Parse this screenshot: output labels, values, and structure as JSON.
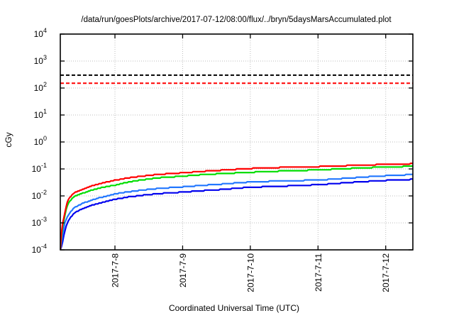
{
  "title": "/data/run/goesPlots/archive/2017-07-12/08:00/flux/../bryn/5daysMarsAccumulated.plot",
  "chart_data": {
    "type": "line",
    "title": "/data/run/goesPlots/archive/2017-07-12/08:00/flux/../bryn/5daysMarsAccumulated.plot",
    "xlabel": "Coordinated Universal Time (UTC)",
    "ylabel": "cGy",
    "y_scale": "log10",
    "ylim": [
      0.0001,
      10000
    ],
    "grid": true,
    "legend": false,
    "y_tick_exponents": [
      4,
      3,
      2,
      1,
      0,
      -1,
      -2,
      -3,
      -4
    ],
    "y_tick_base": "10",
    "x_ticks": [
      {
        "label": "2017-7-8",
        "u": 0.155
      },
      {
        "label": "2017-7-9",
        "u": 0.347
      },
      {
        "label": "2017-7-10",
        "u": 0.539
      },
      {
        "label": "2017-7-11",
        "u": 0.731
      },
      {
        "label": "2017-7-12",
        "u": 0.923
      }
    ],
    "reference_lines": [
      {
        "name": "upper-dose-limit",
        "value": 300,
        "color": "#000000",
        "style": "dashed"
      },
      {
        "name": "lower-dose-limit",
        "value": 150,
        "color": "#ff0000",
        "style": "dashed"
      }
    ],
    "series": [
      {
        "name": "blue-accumulated-dose",
        "color": "#0000ee",
        "points": [
          [
            0,
            0.0001
          ],
          [
            0.005,
            0.00015
          ],
          [
            0.009,
            0.0003
          ],
          [
            0.013,
            0.0005
          ],
          [
            0.017,
            0.0008
          ],
          [
            0.023,
            0.0012
          ],
          [
            0.03,
            0.0017
          ],
          [
            0.04,
            0.0023
          ],
          [
            0.052,
            0.0029
          ],
          [
            0.068,
            0.0036
          ],
          [
            0.09,
            0.0045
          ],
          [
            0.111,
            0.0054
          ],
          [
            0.133,
            0.0064
          ],
          [
            0.155,
            0.0075
          ],
          [
            0.19,
            0.009
          ],
          [
            0.23,
            0.0105
          ],
          [
            0.28,
            0.0122
          ],
          [
            0.347,
            0.0138
          ],
          [
            0.4,
            0.0156
          ],
          [
            0.46,
            0.0174
          ],
          [
            0.539,
            0.021
          ],
          [
            0.6,
            0.0222
          ],
          [
            0.66,
            0.0238
          ],
          [
            0.731,
            0.026
          ],
          [
            0.8,
            0.03
          ],
          [
            0.86,
            0.034
          ],
          [
            0.923,
            0.0375
          ],
          [
            1,
            0.041
          ]
        ]
      },
      {
        "name": "light-blue-accumulated-dose",
        "color": "#2277ff",
        "points": [
          [
            0,
            0.0001
          ],
          [
            0.004,
            0.0002
          ],
          [
            0.008,
            0.0005
          ],
          [
            0.012,
            0.0009
          ],
          [
            0.016,
            0.0013
          ],
          [
            0.022,
            0.0019
          ],
          [
            0.03,
            0.0027
          ],
          [
            0.04,
            0.0036
          ],
          [
            0.052,
            0.0045
          ],
          [
            0.068,
            0.0056
          ],
          [
            0.09,
            0.007
          ],
          [
            0.111,
            0.0085
          ],
          [
            0.133,
            0.01
          ],
          [
            0.155,
            0.0118
          ],
          [
            0.19,
            0.014
          ],
          [
            0.23,
            0.0163
          ],
          [
            0.28,
            0.019
          ],
          [
            0.347,
            0.0216
          ],
          [
            0.4,
            0.0245
          ],
          [
            0.46,
            0.0275
          ],
          [
            0.539,
            0.033
          ],
          [
            0.6,
            0.035
          ],
          [
            0.66,
            0.0368
          ],
          [
            0.731,
            0.0386
          ],
          [
            0.8,
            0.044
          ],
          [
            0.86,
            0.05
          ],
          [
            0.923,
            0.056
          ],
          [
            1,
            0.062
          ]
        ]
      },
      {
        "name": "green-accumulated-dose",
        "color": "#00dd00",
        "points": [
          [
            0,
            0.0001
          ],
          [
            0.003,
            0.0003
          ],
          [
            0.006,
            0.0007
          ],
          [
            0.01,
            0.0012
          ],
          [
            0.014,
            0.0022
          ],
          [
            0.018,
            0.0038
          ],
          [
            0.024,
            0.0058
          ],
          [
            0.034,
            0.0082
          ],
          [
            0.044,
            0.01
          ],
          [
            0.055,
            0.0115
          ],
          [
            0.068,
            0.0132
          ],
          [
            0.09,
            0.0165
          ],
          [
            0.111,
            0.0195
          ],
          [
            0.133,
            0.0222
          ],
          [
            0.155,
            0.025
          ],
          [
            0.19,
            0.032
          ],
          [
            0.23,
            0.039
          ],
          [
            0.28,
            0.047
          ],
          [
            0.347,
            0.054
          ],
          [
            0.4,
            0.061
          ],
          [
            0.46,
            0.067
          ],
          [
            0.539,
            0.075
          ],
          [
            0.6,
            0.081
          ],
          [
            0.66,
            0.086
          ],
          [
            0.731,
            0.092
          ],
          [
            0.8,
            0.101
          ],
          [
            0.86,
            0.11
          ],
          [
            0.923,
            0.118
          ],
          [
            1,
            0.125
          ]
        ]
      },
      {
        "name": "red-accumulated-dose",
        "color": "#ff0000",
        "points": [
          [
            0,
            0.0001
          ],
          [
            0.003,
            0.0004
          ],
          [
            0.006,
            0.0009
          ],
          [
            0.01,
            0.0015
          ],
          [
            0.014,
            0.0028
          ],
          [
            0.018,
            0.005
          ],
          [
            0.024,
            0.0078
          ],
          [
            0.034,
            0.0115
          ],
          [
            0.044,
            0.014
          ],
          [
            0.055,
            0.016
          ],
          [
            0.068,
            0.0185
          ],
          [
            0.09,
            0.0235
          ],
          [
            0.111,
            0.0285
          ],
          [
            0.133,
            0.033
          ],
          [
            0.155,
            0.038
          ],
          [
            0.19,
            0.046
          ],
          [
            0.23,
            0.054
          ],
          [
            0.28,
            0.063
          ],
          [
            0.347,
            0.072
          ],
          [
            0.4,
            0.081
          ],
          [
            0.46,
            0.09
          ],
          [
            0.539,
            0.104
          ],
          [
            0.6,
            0.111
          ],
          [
            0.66,
            0.117
          ],
          [
            0.731,
            0.122
          ],
          [
            0.8,
            0.131
          ],
          [
            0.86,
            0.139
          ],
          [
            0.923,
            0.147
          ],
          [
            1,
            0.156
          ]
        ]
      }
    ],
    "colors": {
      "grid": "#bdbdbd",
      "axis": "#000000",
      "background": "#ffffff"
    }
  }
}
